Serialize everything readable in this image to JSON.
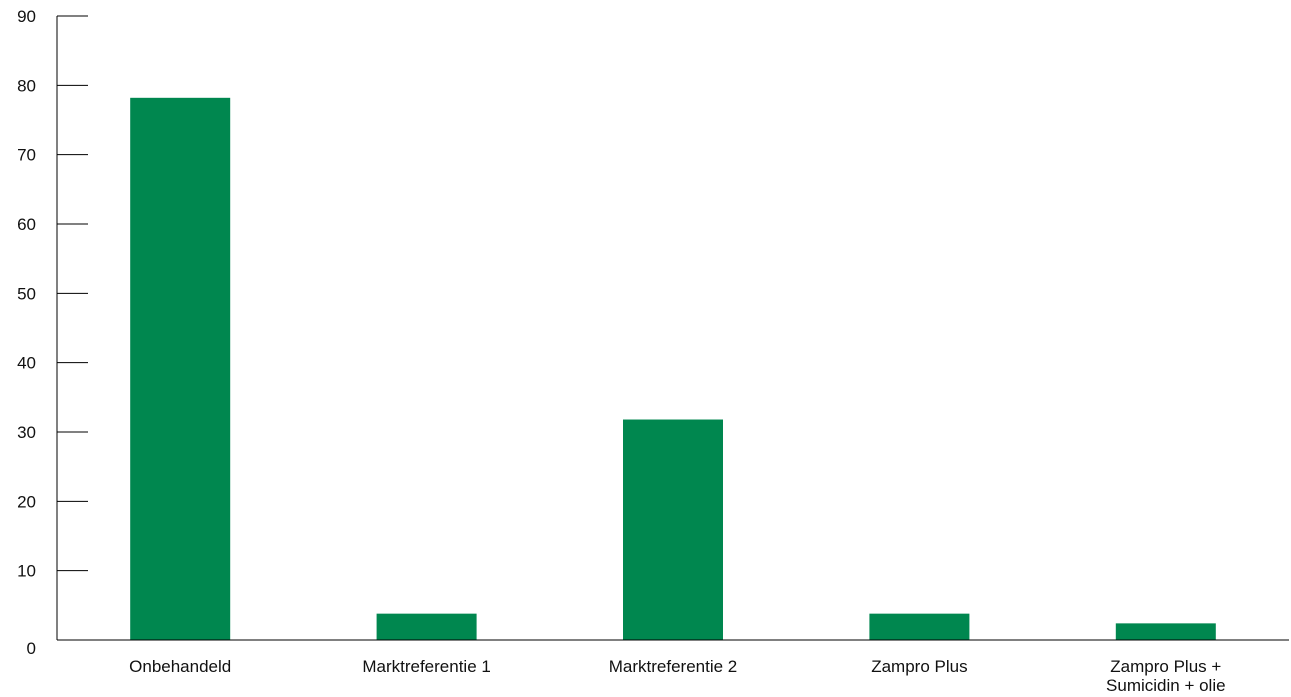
{
  "chart_data": {
    "type": "bar",
    "title": "",
    "xlabel": "",
    "ylabel": "",
    "categories": [
      "Onbehandeld",
      "Marktreferentie 1",
      "Marktreferentie 2",
      "Zampro Plus",
      "Zampro Plus + Sumicidin + olie"
    ],
    "category_label_lines": [
      [
        "Onbehandeld"
      ],
      [
        "Marktreferentie 1"
      ],
      [
        "Marktreferentie 2"
      ],
      [
        "Zampro Plus"
      ],
      [
        "Zampro Plus +",
        "Sumicidin + olie"
      ]
    ],
    "values": [
      78.2,
      3.8,
      31.8,
      3.8,
      2.4
    ],
    "ylim": [
      0,
      90
    ],
    "yticks": [
      0,
      10,
      20,
      30,
      40,
      50,
      60,
      70,
      80,
      90
    ],
    "grid": false,
    "legend": "none",
    "bar_color": "#00874f",
    "axis_color": "#000000"
  }
}
